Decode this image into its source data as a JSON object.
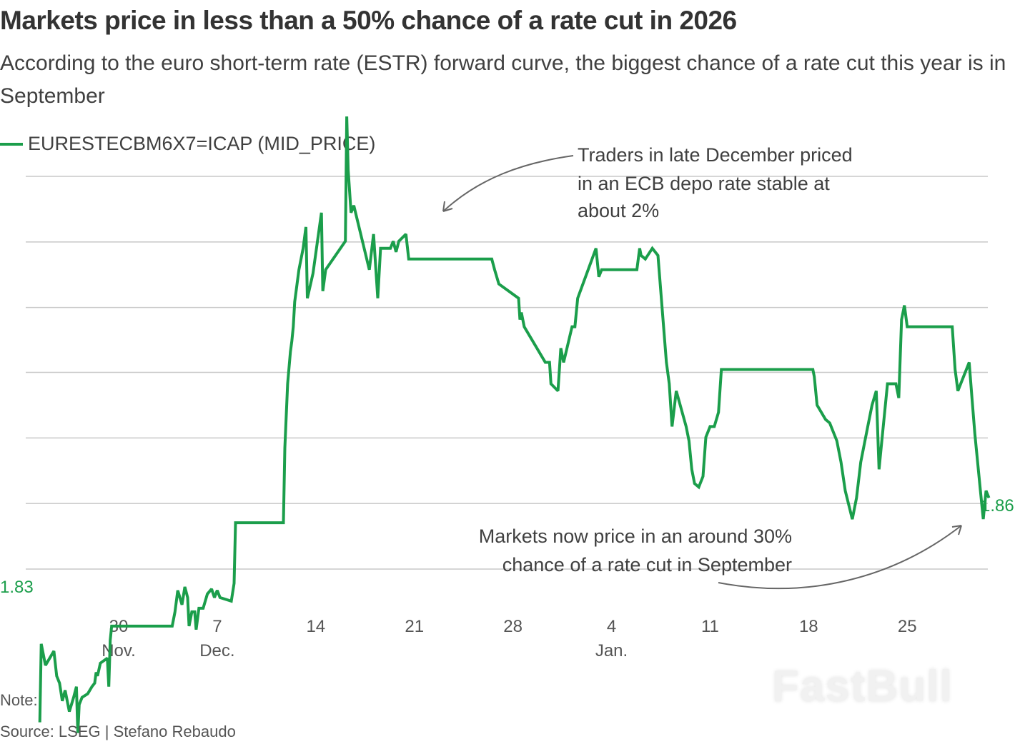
{
  "header": {
    "title": "Markets price in less than a 50% chance of a rate cut in 2026",
    "subtitle": "According to the euro short-term rate (ESTR) forward curve, the biggest chance of a rate cut this year is in September"
  },
  "legend": {
    "label": "EURESTECBM6X7=ICAP (MID_PRICE)",
    "color": "#1b9e4b"
  },
  "annotations": {
    "top": [
      "Traders in late December priced",
      "in an ECB depo rate stable at",
      "about 2%"
    ],
    "bottom": [
      "Markets now price in an around 30%",
      "chance of a rate cut in September"
    ]
  },
  "footer": {
    "note": "Note:",
    "source": "Source: LSEG | Stefano Rebaudo"
  },
  "watermark": "FastBull",
  "colors": {
    "line": "#1b9e4b",
    "grid": "#c8c8c8",
    "arrow": "#666666",
    "text": "#404040"
  },
  "chart_data": {
    "type": "line",
    "title": "Markets price in less than a 50% chance of a rate cut in 2026",
    "subtitle": "According to the euro short-term rate (ESTR) forward curve, the biggest chance of a rate cut this year is in September",
    "xlabel": "",
    "ylabel": "",
    "grid": true,
    "grid_lines": 7,
    "legend_position": "top-left",
    "x_unit": "days since Nov. 30",
    "x_ticks": [
      {
        "day": 0,
        "label": "30",
        "sublabel": "Nov."
      },
      {
        "day": 7,
        "label": "7",
        "sublabel": "Dec."
      },
      {
        "day": 14,
        "label": "14",
        "sublabel": ""
      },
      {
        "day": 21,
        "label": "21",
        "sublabel": ""
      },
      {
        "day": 28,
        "label": "28",
        "sublabel": ""
      },
      {
        "day": 35,
        "label": "4",
        "sublabel": "Jan."
      },
      {
        "day": 42,
        "label": "11",
        "sublabel": ""
      },
      {
        "day": 49,
        "label": "18",
        "sublabel": ""
      },
      {
        "day": 56,
        "label": "25",
        "sublabel": ""
      }
    ],
    "xlim": [
      -6.8,
      61.8
    ],
    "ylim": [
      1.8237,
      1.9091
    ],
    "grid_values": [
      1.9091,
      1.8999,
      1.8907,
      1.8816,
      1.8724,
      1.8632,
      1.854
    ],
    "start_label": "1.83",
    "end_label": "1.86",
    "series": [
      {
        "name": "EURESTECBM6X7=ICAP (MID_PRICE)",
        "points": [
          [
            -5.6,
            1.8325
          ],
          [
            -5.5,
            1.8435
          ],
          [
            -5.2,
            1.8405
          ],
          [
            -4.6,
            1.8425
          ],
          [
            -4.4,
            1.839
          ],
          [
            -4.2,
            1.838
          ],
          [
            -4.0,
            1.8355
          ],
          [
            -3.8,
            1.837
          ],
          [
            -3.5,
            1.834
          ],
          [
            -3.2,
            1.836
          ],
          [
            -3.0,
            1.8375
          ],
          [
            -2.9,
            1.831
          ],
          [
            -2.8,
            1.835
          ],
          [
            -2.6,
            1.836
          ],
          [
            -2.2,
            1.8365
          ],
          [
            -1.9,
            1.8375
          ],
          [
            -1.7,
            1.838
          ],
          [
            -1.6,
            1.8395
          ],
          [
            -1.5,
            1.839
          ],
          [
            -1.3,
            1.8408
          ],
          [
            -0.8,
            1.8415
          ],
          [
            -0.7,
            1.8375
          ],
          [
            -0.6,
            1.844
          ],
          [
            -0.5,
            1.846
          ],
          [
            -0.3,
            1.846
          ],
          [
            3.8,
            1.846
          ],
          [
            4.0,
            1.848
          ],
          [
            4.2,
            1.851
          ],
          [
            4.5,
            1.849
          ],
          [
            4.7,
            1.8515
          ],
          [
            4.9,
            1.85
          ],
          [
            5.0,
            1.846
          ],
          [
            5.2,
            1.848
          ],
          [
            5.4,
            1.848
          ],
          [
            5.5,
            1.8455
          ],
          [
            5.7,
            1.8485
          ],
          [
            6.0,
            1.8485
          ],
          [
            6.3,
            1.8505
          ],
          [
            6.6,
            1.8512
          ],
          [
            6.8,
            1.85
          ],
          [
            7.0,
            1.851
          ],
          [
            7.2,
            1.85
          ],
          [
            8.0,
            1.8495
          ],
          [
            8.2,
            1.852
          ],
          [
            8.3,
            1.8605
          ],
          [
            11.7,
            1.8605
          ],
          [
            11.8,
            1.871
          ],
          [
            12.0,
            1.88
          ],
          [
            12.2,
            1.8845
          ],
          [
            12.3,
            1.886
          ],
          [
            12.4,
            1.888
          ],
          [
            12.5,
            1.8915
          ],
          [
            12.8,
            1.896
          ],
          [
            13.1,
            1.899
          ],
          [
            13.3,
            1.902
          ],
          [
            13.4,
            1.892
          ],
          [
            13.8,
            1.8955
          ],
          [
            14.4,
            1.904
          ],
          [
            14.5,
            1.893
          ],
          [
            14.7,
            1.896
          ],
          [
            15.4,
            1.898
          ],
          [
            16.1,
            1.9
          ],
          [
            16.2,
            1.9175
          ],
          [
            16.3,
            1.91
          ],
          [
            16.5,
            1.904
          ],
          [
            16.7,
            1.905
          ],
          [
            17.8,
            1.896
          ],
          [
            18.1,
            1.901
          ],
          [
            18.4,
            1.892
          ],
          [
            18.6,
            1.899
          ],
          [
            19.3,
            1.899
          ],
          [
            19.5,
            1.9
          ],
          [
            19.7,
            1.8985
          ],
          [
            19.9,
            1.9
          ],
          [
            20.4,
            1.901
          ],
          [
            20.6,
            1.8975
          ],
          [
            26.5,
            1.8975
          ],
          [
            26.7,
            1.896
          ],
          [
            27.0,
            1.894
          ],
          [
            28.4,
            1.892
          ],
          [
            28.5,
            1.889
          ],
          [
            28.6,
            1.89
          ],
          [
            28.8,
            1.888
          ],
          [
            30.3,
            1.883
          ],
          [
            30.6,
            1.883
          ],
          [
            30.7,
            1.88
          ],
          [
            31.2,
            1.879
          ],
          [
            31.4,
            1.885
          ],
          [
            31.6,
            1.883
          ],
          [
            32.2,
            1.888
          ],
          [
            32.4,
            1.888
          ],
          [
            32.6,
            1.892
          ],
          [
            33.9,
            1.899
          ],
          [
            34.1,
            1.895
          ],
          [
            34.3,
            1.896
          ],
          [
            36.8,
            1.896
          ],
          [
            37.0,
            1.899
          ],
          [
            37.1,
            1.898
          ],
          [
            37.4,
            1.8975
          ],
          [
            37.9,
            1.899
          ],
          [
            38.3,
            1.898
          ],
          [
            38.9,
            1.883
          ],
          [
            39.1,
            1.88
          ],
          [
            39.3,
            1.874
          ],
          [
            39.6,
            1.879
          ],
          [
            40.3,
            1.874
          ],
          [
            40.5,
            1.872
          ],
          [
            40.7,
            1.868
          ],
          [
            40.9,
            1.866
          ],
          [
            41.2,
            1.8655
          ],
          [
            41.5,
            1.867
          ],
          [
            41.7,
            1.8725
          ],
          [
            42.0,
            1.874
          ],
          [
            42.3,
            1.874
          ],
          [
            42.6,
            1.876
          ],
          [
            42.8,
            1.882
          ],
          [
            49.3,
            1.882
          ],
          [
            49.4,
            1.881
          ],
          [
            49.6,
            1.877
          ],
          [
            49.9,
            1.876
          ],
          [
            50.2,
            1.875
          ],
          [
            50.5,
            1.8745
          ],
          [
            51.0,
            1.872
          ],
          [
            51.3,
            1.869
          ],
          [
            51.6,
            1.865
          ],
          [
            52.1,
            1.861
          ],
          [
            52.4,
            1.864
          ],
          [
            52.7,
            1.869
          ],
          [
            53.2,
            1.874
          ],
          [
            53.5,
            1.877
          ],
          [
            53.8,
            1.879
          ],
          [
            54.0,
            1.868
          ],
          [
            54.2,
            1.872
          ],
          [
            54.6,
            1.88
          ],
          [
            55.2,
            1.88
          ],
          [
            55.4,
            1.878
          ],
          [
            55.6,
            1.889
          ],
          [
            55.8,
            1.891
          ],
          [
            56.0,
            1.888
          ],
          [
            59.2,
            1.888
          ],
          [
            59.4,
            1.882
          ],
          [
            59.6,
            1.879
          ],
          [
            60.0,
            1.881
          ],
          [
            60.4,
            1.883
          ],
          [
            60.6,
            1.878
          ],
          [
            60.8,
            1.873
          ],
          [
            61.2,
            1.865
          ],
          [
            61.4,
            1.861
          ],
          [
            61.6,
            1.865
          ],
          [
            61.8,
            1.864
          ]
        ]
      }
    ]
  }
}
